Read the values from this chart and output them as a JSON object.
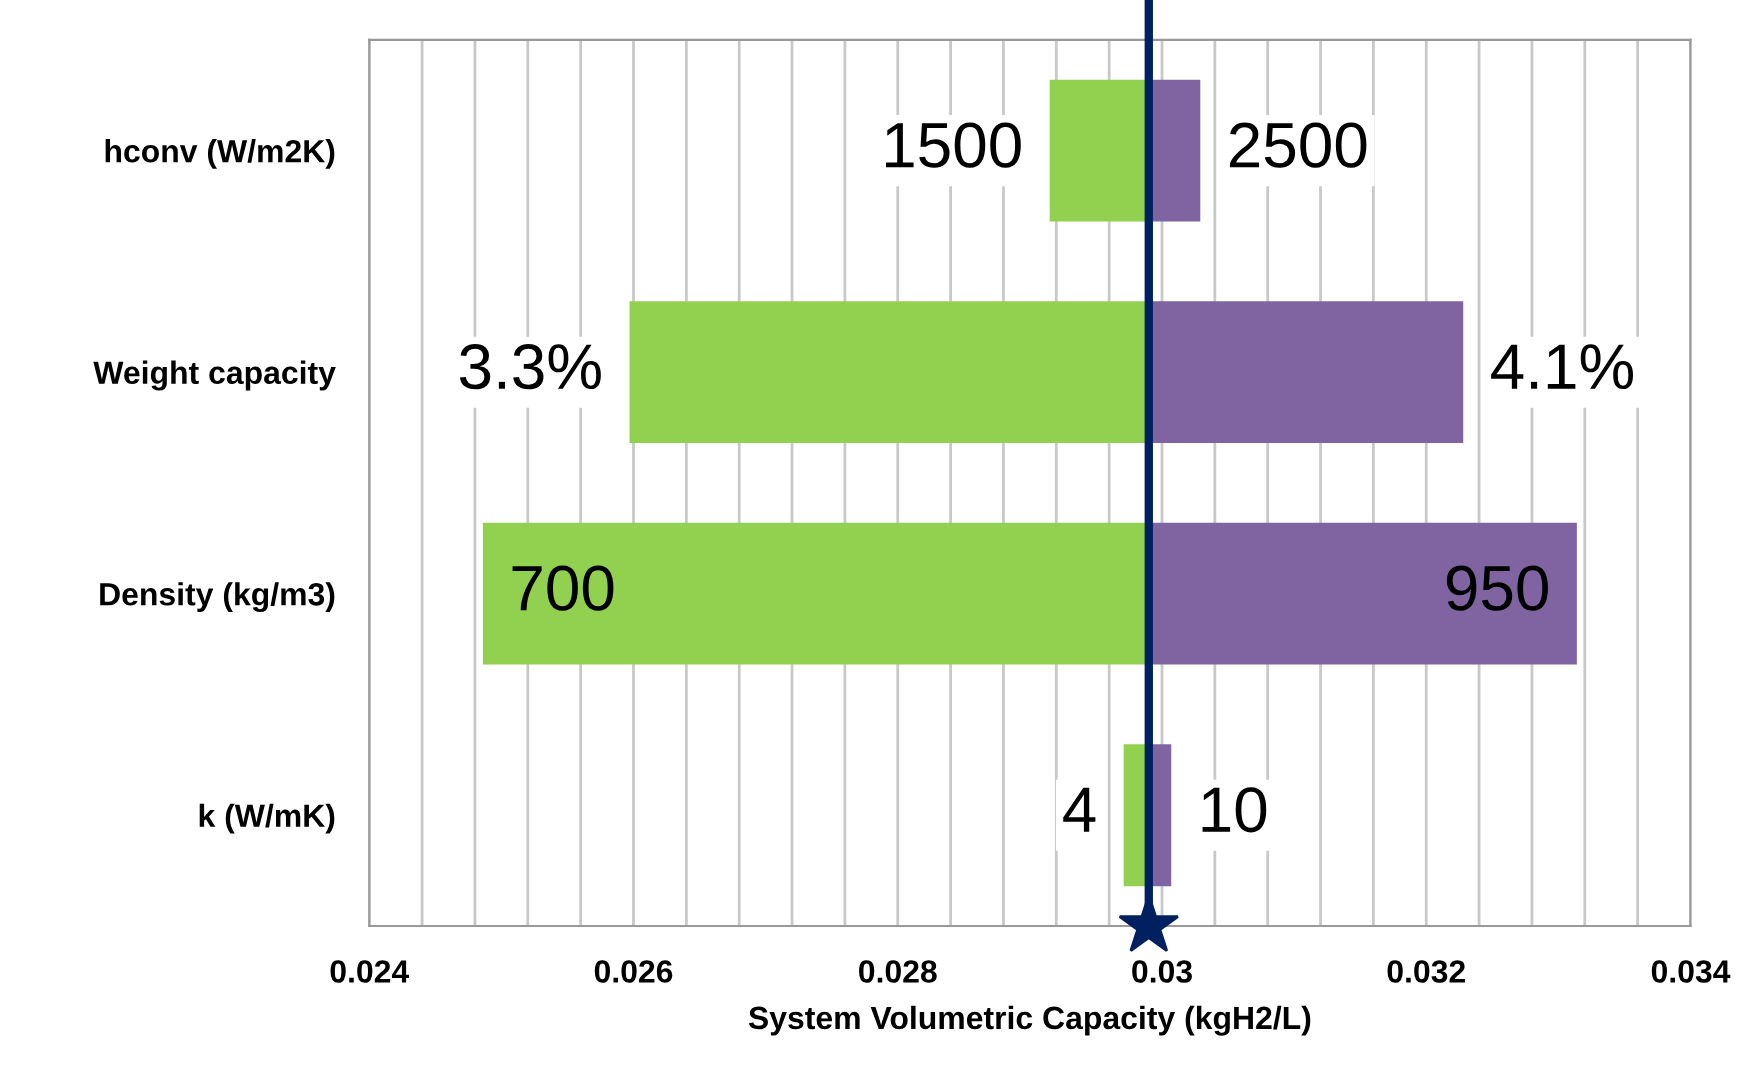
{
  "chart_data": {
    "type": "bar",
    "orientation": "horizontal",
    "xlabel": "System Volumetric Capacity (kgH2/L)",
    "categories": [
      "hconv (W/m2K)",
      "Weight capacity",
      "Density (kg/m3)",
      "k (W/mK)"
    ],
    "series": [
      {
        "color": "#92d050",
        "base": [
          0.02915,
          0.02597,
          0.02486,
          0.02971
        ],
        "values": [
          0.00075,
          0.00393,
          0.00504,
          0.00019
        ]
      },
      {
        "color": "#8064a2",
        "base": [
          0.0299,
          0.0299,
          0.0299,
          0.0299
        ],
        "values": [
          0.00039,
          0.00238,
          0.00324,
          0.00017
        ]
      }
    ],
    "annotations": [
      {
        "text": "1500",
        "x": 0.02915,
        "y": "hconv (W/m2K)"
      },
      {
        "text": "2500",
        "x": 0.03029,
        "y": "hconv (W/m2K)"
      },
      {
        "text": "3.3%",
        "x": 0.02597,
        "y": "Weight capacity"
      },
      {
        "text": "4.1%",
        "x": 0.03228,
        "y": "Weight capacity"
      },
      {
        "text": "700",
        "x": 0.02486,
        "y": "Density (kg/m3)"
      },
      {
        "text": "950",
        "x": 0.03314,
        "y": "Density (kg/m3)"
      },
      {
        "text": "4",
        "x": 0.02971,
        "y": "k (W/mK)"
      },
      {
        "text": "10",
        "x": 0.03007,
        "y": "k (W/mK)"
      }
    ],
    "xlim": [
      0.024,
      0.034
    ],
    "xticks": [
      0.024,
      {
        "value": 0.0244,
        "label": null
      },
      {
        "value": 0.0248,
        "label": null
      },
      {
        "value": 0.0252,
        "label": null
      },
      {
        "value": 0.0256,
        "label": null
      },
      0.026,
      {
        "value": 0.0264,
        "label": null
      },
      {
        "value": 0.0268,
        "label": null
      },
      {
        "value": 0.0272,
        "label": null
      },
      {
        "value": 0.0276,
        "label": null
      },
      0.028,
      {
        "value": 0.0284,
        "label": null
      },
      {
        "value": 0.0288,
        "label": null
      },
      {
        "value": 0.0292,
        "label": null
      },
      {
        "value": 0.0296,
        "label": null
      },
      0.03,
      {
        "value": 0.0304,
        "label": null
      },
      {
        "value": 0.0308,
        "label": null
      },
      {
        "value": 0.0312,
        "label": null
      },
      {
        "value": 0.0316,
        "label": null
      },
      0.032,
      {
        "value": 0.0324,
        "label": null
      },
      {
        "value": 0.0328,
        "label": null
      },
      {
        "value": 0.0332,
        "label": null
      },
      {
        "value": 0.0336,
        "label": null
      },
      0.034
    ],
    "ref_lines": [
      {
        "axis": "x",
        "value": 0.0299,
        "color": "#002060",
        "line_style": "solid"
      }
    ],
    "grid": "x"
  }
}
